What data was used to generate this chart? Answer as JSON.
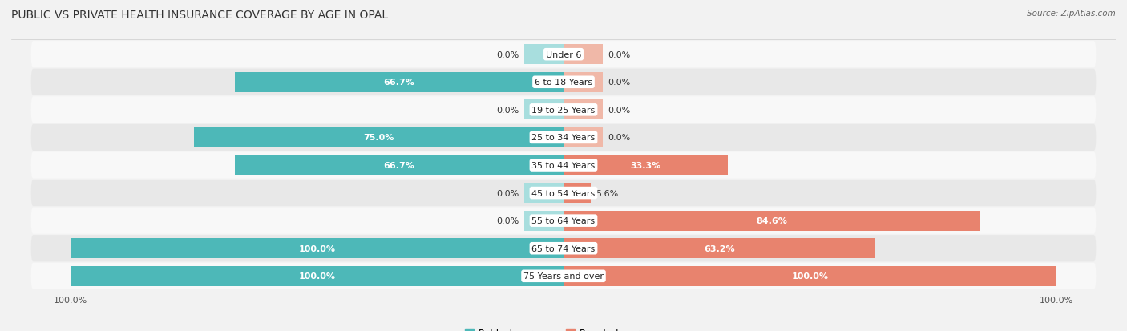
{
  "title": "PUBLIC VS PRIVATE HEALTH INSURANCE COVERAGE BY AGE IN OPAL",
  "source": "Source: ZipAtlas.com",
  "categories": [
    "Under 6",
    "6 to 18 Years",
    "19 to 25 Years",
    "25 to 34 Years",
    "35 to 44 Years",
    "45 to 54 Years",
    "55 to 64 Years",
    "65 to 74 Years",
    "75 Years and over"
  ],
  "public_values": [
    0.0,
    66.7,
    0.0,
    75.0,
    66.7,
    0.0,
    0.0,
    100.0,
    100.0
  ],
  "private_values": [
    0.0,
    0.0,
    0.0,
    0.0,
    33.3,
    5.6,
    84.6,
    63.2,
    100.0
  ],
  "public_color": "#4db8b8",
  "private_color": "#e8836e",
  "public_color_light": "#a8dede",
  "private_color_light": "#f0b8a8",
  "bg_color": "#f2f2f2",
  "row_bg_even": "#f8f8f8",
  "row_bg_odd": "#e8e8e8",
  "max_value": 100.0,
  "stub_value": 8.0,
  "title_fontsize": 10,
  "label_fontsize": 8,
  "tick_fontsize": 8,
  "legend_fontsize": 8.5,
  "bar_height": 0.72,
  "figsize": [
    14.06,
    4.14
  ],
  "dpi": 100
}
